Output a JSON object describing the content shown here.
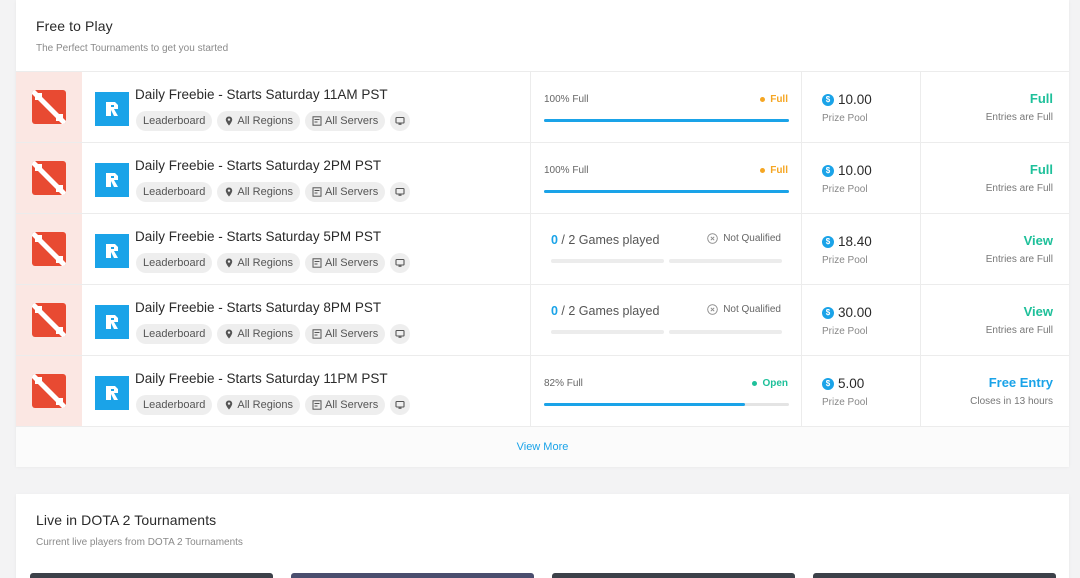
{
  "free_section": {
    "title": "Free to Play",
    "subtitle": "The Perfect Tournaments to get you started",
    "view_more_label": "View More",
    "tournaments": [
      {
        "title": "Daily Freebie - Starts Saturday 11AM PST",
        "tags": {
          "leaderboard": "Leaderboard",
          "regions": "All Regions",
          "servers": "All Servers"
        },
        "progress_mode": "fill",
        "fill_label": "100% Full",
        "fill_fraction": 1.0,
        "status_label": "Full",
        "status_color": "#f5a623",
        "prize": "10.00",
        "prize_label": "Prize Pool",
        "action_label": "Full",
        "action_color": "green",
        "action_sub": "Entries are Full"
      },
      {
        "title": "Daily Freebie - Starts Saturday 2PM PST",
        "tags": {
          "leaderboard": "Leaderboard",
          "regions": "All Regions",
          "servers": "All Servers"
        },
        "progress_mode": "fill",
        "fill_label": "100% Full",
        "fill_fraction": 1.0,
        "status_label": "Full",
        "status_color": "#f5a623",
        "prize": "10.00",
        "prize_label": "Prize Pool",
        "action_label": "Full",
        "action_color": "green",
        "action_sub": "Entries are Full"
      },
      {
        "title": "Daily Freebie - Starts Saturday 5PM PST",
        "tags": {
          "leaderboard": "Leaderboard",
          "regions": "All Regions",
          "servers": "All Servers"
        },
        "progress_mode": "games",
        "games_played": "0",
        "games_label": " / 2 Games played",
        "qual_label": "Not Qualified",
        "prize": "18.40",
        "prize_label": "Prize Pool",
        "action_label": "View",
        "action_color": "green",
        "action_sub": "Entries are Full"
      },
      {
        "title": "Daily Freebie - Starts Saturday 8PM PST",
        "tags": {
          "leaderboard": "Leaderboard",
          "regions": "All Regions",
          "servers": "All Servers"
        },
        "progress_mode": "games",
        "games_played": "0",
        "games_label": " / 2 Games played",
        "qual_label": "Not Qualified",
        "prize": "30.00",
        "prize_label": "Prize Pool",
        "action_label": "View",
        "action_color": "green",
        "action_sub": "Entries are Full"
      },
      {
        "title": "Daily Freebie - Starts Saturday 11PM PST",
        "tags": {
          "leaderboard": "Leaderboard",
          "regions": "All Regions",
          "servers": "All Servers"
        },
        "progress_mode": "fill",
        "fill_label": "82% Full",
        "fill_fraction": 0.82,
        "status_label": "Open",
        "status_color": "#1ec09a",
        "prize": "5.00",
        "prize_label": "Prize Pool",
        "action_label": "Free Entry",
        "action_color": "blue",
        "action_sub": "Closes in 13 hours"
      }
    ]
  },
  "live_section": {
    "title": "Live in DOTA 2 Tournaments",
    "subtitle": "Current live players from DOTA 2 Tournaments"
  },
  "coin_symbol": "$",
  "colors": {
    "accent": "#1aa3e8",
    "green": "#1ec09a",
    "orange": "#f5a623",
    "dota_red": "#e84a32"
  }
}
